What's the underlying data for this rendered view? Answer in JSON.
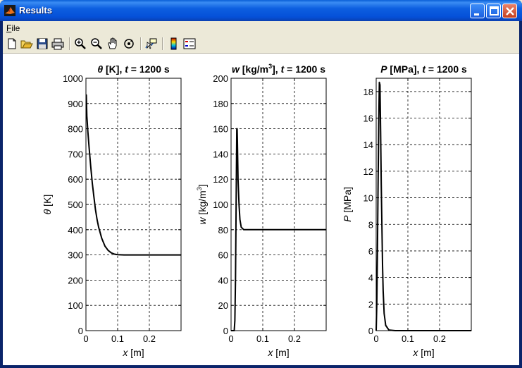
{
  "window": {
    "title": "Results"
  },
  "menu": {
    "file": "File",
    "file_rest": "ile",
    "file_mnemonic": "F"
  },
  "toolbar": {
    "icons": [
      "new-icon",
      "open-icon",
      "save-icon",
      "print-icon",
      "zoom-in-icon",
      "zoom-out-icon",
      "pan-icon",
      "rotate-icon",
      "data-cursor-icon",
      "colorbar-icon",
      "legend-icon"
    ]
  },
  "chart_data": [
    {
      "type": "line",
      "title_sym": "θ",
      "title_unit": " [K],  ",
      "title_t": "t",
      "title_time": " = 1200 s",
      "ylabel_sym": "θ",
      "ylabel_unit": " [K]",
      "xlabel_sym": "x",
      "xlabel_unit": "  [m]",
      "xlim": [
        0,
        0.3
      ],
      "ylim": [
        0,
        1000
      ],
      "xticks": [
        0,
        0.1,
        0.2
      ],
      "xtick_labels": [
        "0",
        "0.1",
        "0.2"
      ],
      "yticks": [
        0,
        100,
        200,
        300,
        400,
        500,
        600,
        700,
        800,
        900,
        1000
      ],
      "ytick_labels": [
        "0",
        "100",
        "200",
        "300",
        "400",
        "500",
        "600",
        "700",
        "800",
        "900",
        "1000"
      ],
      "grid": true,
      "x": [
        0.001,
        0.003,
        0.006,
        0.01,
        0.015,
        0.02,
        0.025,
        0.03,
        0.035,
        0.04,
        0.05,
        0.06,
        0.07,
        0.08,
        0.09,
        0.1,
        0.12,
        0.15,
        0.2,
        0.25,
        0.3
      ],
      "y": [
        935,
        850,
        790,
        725,
        650,
        585,
        530,
        480,
        440,
        410,
        365,
        335,
        318,
        308,
        303,
        301,
        300,
        300,
        300,
        300,
        300
      ]
    },
    {
      "type": "line",
      "title_sym": "w",
      "title_unit": "  [kg/m",
      "title_sup": "3",
      "title_unit2": "],  ",
      "title_t": "t",
      "title_time": " = 1200 s",
      "ylabel_sym": "w",
      "ylabel_unit": "  [kg/m",
      "ylabel_sup": "3",
      "ylabel_unit2": "]",
      "xlabel_sym": "x",
      "xlabel_unit": "  [m]",
      "xlim": [
        0,
        0.3
      ],
      "ylim": [
        0,
        200
      ],
      "xticks": [
        0,
        0.1,
        0.2
      ],
      "xtick_labels": [
        "0",
        "0.1",
        "0.2"
      ],
      "yticks": [
        0,
        20,
        40,
        60,
        80,
        100,
        120,
        140,
        160,
        180,
        200
      ],
      "ytick_labels": [
        "0",
        "20",
        "40",
        "60",
        "80",
        "100",
        "120",
        "140",
        "160",
        "180",
        "200"
      ],
      "grid": true,
      "x": [
        0.0,
        0.008,
        0.01,
        0.012,
        0.014,
        0.016,
        0.018,
        0.019,
        0.02,
        0.022,
        0.025,
        0.028,
        0.032,
        0.04,
        0.06,
        0.1,
        0.2,
        0.3
      ],
      "y": [
        0,
        0,
        0,
        8,
        40,
        100,
        160,
        160,
        150,
        120,
        100,
        88,
        82,
        80,
        80,
        80,
        80,
        80
      ]
    },
    {
      "type": "line",
      "title_sym": "P",
      "title_unit": "  [MPa],  ",
      "title_t": "t",
      "title_time": " = 1200 s",
      "ylabel_sym": "P",
      "ylabel_unit": "  [MPa]",
      "xlabel_sym": "x",
      "xlabel_unit": "  [m]",
      "xlim": [
        0,
        0.3
      ],
      "ylim": [
        0,
        19
      ],
      "xticks": [
        0,
        0.1,
        0.2
      ],
      "xtick_labels": [
        "0",
        "0.1",
        "0.2"
      ],
      "yticks": [
        0,
        2,
        4,
        6,
        8,
        10,
        12,
        14,
        16,
        18
      ],
      "ytick_labels": [
        "0",
        "2",
        "4",
        "6",
        "8",
        "10",
        "12",
        "14",
        "16",
        "18"
      ],
      "grid": true,
      "x": [
        0.0,
        0.002,
        0.004,
        0.006,
        0.008,
        0.01,
        0.012,
        0.014,
        0.016,
        0.018,
        0.02,
        0.022,
        0.025,
        0.03,
        0.04,
        0.06,
        0.1,
        0.2,
        0.3
      ],
      "y": [
        0,
        2,
        6,
        11,
        15.5,
        18.7,
        18.5,
        15,
        11,
        8,
        5,
        3,
        1.3,
        0.4,
        0.05,
        0,
        0,
        0,
        0
      ]
    }
  ]
}
